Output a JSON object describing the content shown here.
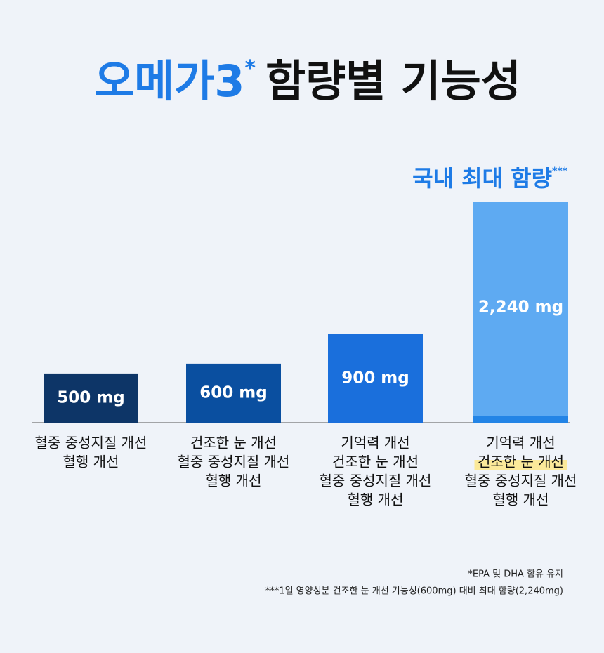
{
  "chart_data": {
    "type": "bar",
    "title_highlight": "오메가3",
    "title_mark": "*",
    "title_rest": "함량별 기능성",
    "annotation": "국내 최대 함량",
    "annotation_mark": "***",
    "categories": [
      [
        "혈중 중성지질 개선",
        "혈행 개선"
      ],
      [
        "건조한 눈 개선",
        "혈중 중성지질 개선",
        "혈행 개선"
      ],
      [
        "기억력 개선",
        "건조한 눈 개선",
        "혈중 중성지질 개선",
        "혈행 개선"
      ],
      [
        "기억력 개선",
        "건조한 눈 개선",
        "혈중 중성지질 개선",
        "혈행 개선"
      ]
    ],
    "values": [
      500,
      600,
      900,
      2240
    ],
    "value_labels": [
      "500 mg",
      "600 mg",
      "900 mg",
      "2,240 mg"
    ],
    "colors": [
      "#0d3567",
      "#0a4fa0",
      "#1a6fdc",
      "#5eaaf2"
    ],
    "highlight_line": [
      3,
      1
    ],
    "footnotes": [
      "*EPA 및 DHA 함유 유지",
      "***1일 영양성분 건조한 눈 개선 기능성(600mg) 대비 최대 함량(2,240mg)"
    ]
  }
}
